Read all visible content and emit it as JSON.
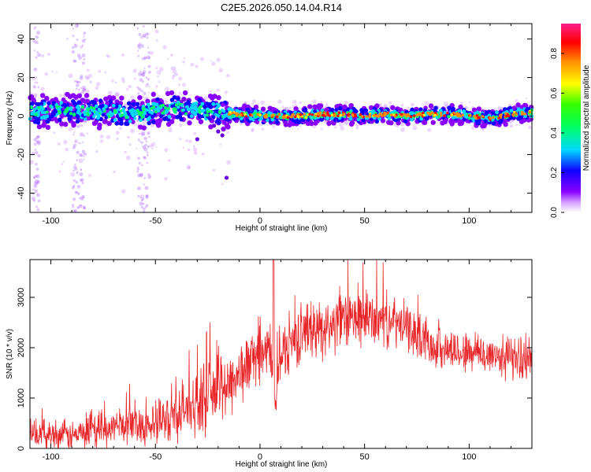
{
  "title": "C2E5.2026.050.14.04.R14",
  "colors": {
    "snr_line": "#e8262a",
    "axis": "#000000",
    "background": "#ffffff"
  },
  "chart_data": [
    {
      "type": "heatmap",
      "xlabel": "Height of straight line (km)",
      "ylabel": "Frequency (Hz)",
      "xlim": [
        -110,
        130
      ],
      "ylim": [
        -50,
        48
      ],
      "xticks": [
        -100,
        -50,
        0,
        50,
        100
      ],
      "yticks": [
        -40,
        -20,
        0,
        20,
        40
      ],
      "xtick_labels": [
        "-100",
        "-50",
        "0",
        "50",
        "100"
      ],
      "ytick_labels": [
        "-40",
        "-20",
        "0",
        "20",
        "40"
      ],
      "colorbar": {
        "label": "Normalized spectral amplitude",
        "range": [
          0,
          0.95
        ],
        "ticks": [
          0.0,
          0.2,
          0.4,
          0.6,
          0.8
        ],
        "tick_labels": [
          "0.0",
          "0.2",
          "0.4",
          "0.6",
          "0.8"
        ],
        "colormap": "rainbow (white-violet-blue-cyan-green-yellow-red-magenta)"
      },
      "ridge": {
        "description": "spectral peak ridge near 0-5 Hz across height",
        "x": [
          -110,
          -100,
          -90,
          -80,
          -70,
          -60,
          -50,
          -40,
          -30,
          -20,
          -10,
          0,
          10,
          20,
          30,
          40,
          50,
          60,
          70,
          80,
          90,
          100,
          110,
          120,
          130
        ],
        "y": [
          2,
          3,
          3,
          2,
          2,
          1,
          3,
          4,
          3,
          2,
          1,
          0,
          0,
          0,
          1,
          1,
          0,
          1,
          0,
          1,
          1,
          0,
          -1,
          1,
          2
        ]
      }
    },
    {
      "type": "line",
      "xlabel": "Height of straight line (km)",
      "ylabel": "SNR (10 * v/v)",
      "xlim": [
        -110,
        130
      ],
      "ylim": [
        0,
        3750
      ],
      "xticks": [
        -100,
        -50,
        0,
        50,
        100
      ],
      "yticks": [
        0,
        1000,
        2000,
        3000
      ],
      "xtick_labels": [
        "-100",
        "-50",
        "0",
        "50",
        "100"
      ],
      "ytick_labels": [
        "0",
        "1000",
        "2000",
        "3000"
      ],
      "trend": {
        "x": [
          -110,
          -100,
          -90,
          -80,
          -70,
          -60,
          -50,
          -40,
          -30,
          -20,
          -15,
          -10,
          -5,
          0,
          5,
          7,
          10,
          15,
          20,
          30,
          40,
          50,
          60,
          70,
          80,
          90,
          100,
          110,
          120,
          130
        ],
        "y": [
          250,
          300,
          250,
          300,
          420,
          500,
          450,
          700,
          900,
          1200,
          1300,
          1450,
          1700,
          1850,
          1950,
          700,
          1900,
          2100,
          2300,
          2400,
          2500,
          2600,
          2550,
          2400,
          2100,
          1950,
          1900,
          1850,
          1800,
          1750
        ]
      },
      "noise_amplitude": {
        "x": [
          -110,
          -60,
          -40,
          -20,
          -10,
          0,
          20,
          50,
          80,
          130
        ],
        "y": [
          250,
          350,
          500,
          700,
          600,
          500,
          550,
          550,
          400,
          400
        ]
      }
    }
  ]
}
